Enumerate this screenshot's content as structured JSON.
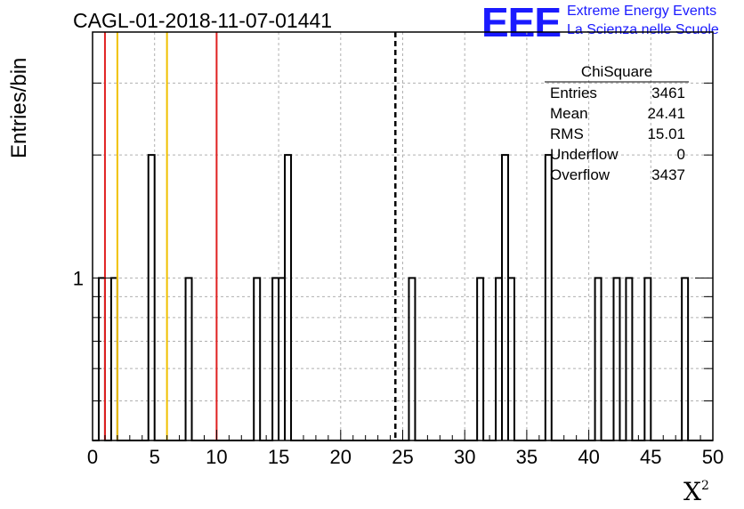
{
  "title": "CAGL-01-2018-11-07-01441",
  "logo": {
    "mark": "EEE",
    "line1": "Extreme Energy Events",
    "line2": "La Scienza nelle Scuole",
    "color": "#1a1aff"
  },
  "chart_data": {
    "type": "bar",
    "title": "CAGL-01-2018-11-07-01441",
    "xlabel": "X",
    "xlabel_sup": "2",
    "ylabel": "Entries/bin",
    "xlim": [
      0,
      50
    ],
    "ylim_log": [
      0.4,
      4.0
    ],
    "y_scale": "log",
    "grid": true,
    "bin_width": 0.5,
    "x_ticks": [
      0,
      5,
      10,
      15,
      20,
      25,
      30,
      35,
      40,
      45,
      50
    ],
    "y_tick_labels": [
      {
        "value": 1,
        "label": "1"
      }
    ],
    "bins": [
      {
        "x": 0.5,
        "y": 1
      },
      {
        "x": 1.5,
        "y": 1
      },
      {
        "x": 4.5,
        "y": 2
      },
      {
        "x": 7.5,
        "y": 1
      },
      {
        "x": 13.0,
        "y": 1
      },
      {
        "x": 14.5,
        "y": 1
      },
      {
        "x": 15.0,
        "y": 1
      },
      {
        "x": 15.5,
        "y": 2
      },
      {
        "x": 25.5,
        "y": 1
      },
      {
        "x": 31.0,
        "y": 1
      },
      {
        "x": 32.5,
        "y": 1
      },
      {
        "x": 33.0,
        "y": 2
      },
      {
        "x": 33.5,
        "y": 1
      },
      {
        "x": 36.5,
        "y": 2
      },
      {
        "x": 40.5,
        "y": 1
      },
      {
        "x": 42.0,
        "y": 1
      },
      {
        "x": 43.0,
        "y": 1
      },
      {
        "x": 44.5,
        "y": 1
      },
      {
        "x": 47.5,
        "y": 1
      }
    ],
    "vertical_lines": [
      {
        "x": 1.0,
        "color": "#e02020",
        "style": "solid"
      },
      {
        "x": 2.0,
        "color": "#f0c000",
        "style": "solid"
      },
      {
        "x": 6.0,
        "color": "#f0c000",
        "style": "solid"
      },
      {
        "x": 10.0,
        "color": "#e02020",
        "style": "solid"
      },
      {
        "x": 24.41,
        "color": "#000000",
        "style": "dashed"
      }
    ],
    "stats": {
      "name": "ChiSquare",
      "rows": [
        {
          "label": "Entries",
          "value": "3461"
        },
        {
          "label": "Mean",
          "value": "24.41"
        },
        {
          "label": "RMS",
          "value": "15.01"
        },
        {
          "label": "Underflow",
          "value": "0"
        },
        {
          "label": "Overflow",
          "value": "3437"
        }
      ]
    }
  }
}
